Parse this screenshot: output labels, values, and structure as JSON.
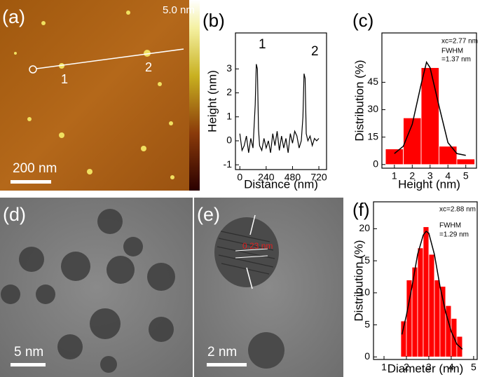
{
  "chart_data": [
    {
      "type": "line",
      "panel": "(b)",
      "xlabel": "Distance (nm)",
      "ylabel": "Height (nm)",
      "color": "#000000",
      "x": [
        0,
        20,
        40,
        60,
        80,
        100,
        120,
        140,
        150,
        160,
        170,
        180,
        200,
        220,
        240,
        260,
        280,
        300,
        320,
        340,
        360,
        380,
        400,
        420,
        440,
        460,
        480,
        500,
        520,
        540,
        560,
        575,
        585,
        595,
        605,
        620,
        640,
        660,
        680,
        700,
        720
      ],
      "values": [
        0.3,
        -0.4,
        -0.2,
        0.2,
        -0.5,
        0.1,
        -0.3,
        1.5,
        3.2,
        3.0,
        0.5,
        -0.2,
        -0.4,
        0.1,
        -0.3,
        0.0,
        -0.5,
        0.3,
        -0.2,
        0.4,
        -0.4,
        0.2,
        -0.3,
        0.1,
        -0.5,
        0.3,
        -0.1,
        0.4,
        0.2,
        -0.3,
        0.0,
        1.0,
        2.8,
        2.6,
        0.3,
        0.0,
        0.2,
        -0.2,
        0.1,
        0.0,
        0.1
      ],
      "xlim": [
        -40,
        790
      ],
      "ylim": [
        -1.2,
        4.5
      ],
      "xticks": [
        0,
        240,
        480,
        720
      ],
      "yticks": [
        -1,
        0,
        1,
        2,
        3
      ],
      "annotations": [
        "1",
        "2"
      ]
    },
    {
      "type": "histogram",
      "panel": "(c)",
      "xlabel": "Height (nm)",
      "ylabel": "Distribution (%)",
      "color": "#ff0000",
      "bins": [
        0.5,
        1.5,
        2.5,
        3.5,
        4.5,
        5.5
      ],
      "values": [
        8.5,
        25.5,
        53,
        10,
        3
      ],
      "fit": {
        "color": "#000000",
        "x": [
          1.0,
          1.5,
          2.0,
          2.5,
          2.8,
          3.0,
          3.5,
          4.0,
          4.5,
          5.0
        ],
        "values": [
          6,
          10,
          22,
          44,
          56,
          53,
          32,
          12,
          6,
          5
        ]
      },
      "xlim": [
        0.3,
        5.6
      ],
      "ylim": [
        -2,
        72
      ],
      "xticks": [
        1,
        2,
        3,
        4,
        5
      ],
      "yticks": [
        0,
        15,
        30,
        45
      ],
      "annotations": [
        "xc=2.77 nm",
        "FWHM",
        "=1.37 nm"
      ]
    },
    {
      "type": "histogram",
      "panel": "(f)",
      "xlabel": "Diameter (nm)",
      "ylabel": "Distribution (%)",
      "color": "#ff0000",
      "bins": [
        1.75,
        2.0,
        2.25,
        2.5,
        2.75,
        3.0,
        3.25,
        3.5,
        3.75,
        4.0,
        4.25,
        4.5
      ],
      "values": [
        5.6,
        12,
        14,
        17,
        20.3,
        16,
        12,
        11,
        8,
        6,
        3.2
      ],
      "fit": {
        "color": "#000000",
        "x": [
          1.8,
          2.0,
          2.25,
          2.5,
          2.75,
          2.88,
          3.0,
          3.25,
          3.5,
          3.75,
          4.0,
          4.25,
          4.5
        ],
        "values": [
          3.5,
          6.5,
          11,
          16,
          19,
          19.6,
          19.3,
          16,
          11,
          7,
          4,
          2,
          1.2
        ]
      },
      "xlim": [
        0.53,
        5.16
      ],
      "ylim": [
        -0.4,
        24.2
      ],
      "xticks": [
        1,
        2,
        3,
        4,
        5
      ],
      "yticks": [
        0,
        5,
        10,
        15,
        20
      ],
      "annotations": [
        "xc=2.88 nm",
        "FWHM",
        "=1.29 nm"
      ]
    }
  ],
  "images": [
    {
      "panel": "(a)",
      "colorbar": "5.0 nm",
      "markers": [
        "1",
        "2"
      ],
      "scale": "200 nm"
    },
    {
      "panel": "(d)",
      "scale": "5 nm"
    },
    {
      "panel": "(e)",
      "spacing": "0.23 nm",
      "scale": "2 nm"
    }
  ]
}
